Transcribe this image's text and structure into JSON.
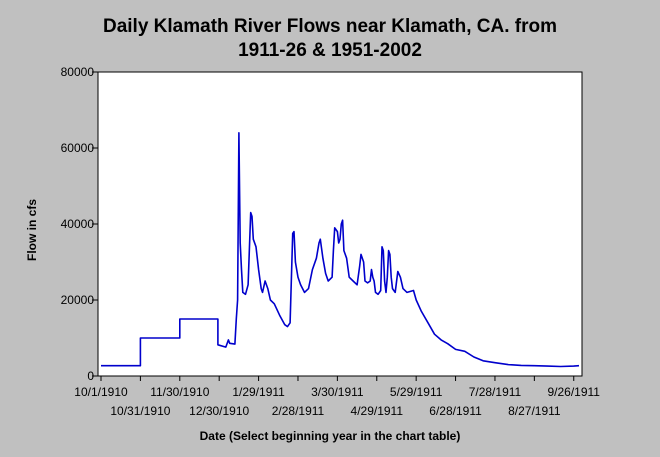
{
  "chart_data": {
    "type": "line",
    "title_line1": "Daily Klamath River Flows near Klamath, CA. from",
    "title_line2": "1911-26 & 1951-2002",
    "xlabel": "Date (Select beginning year in the chart table)",
    "ylabel": "Flow in cfs",
    "ylim": [
      0,
      80000
    ],
    "yticks": [
      "0",
      "20000",
      "40000",
      "60000",
      "80000"
    ],
    "xlim": [
      "1910-10-01",
      "1911-09-30"
    ],
    "xticks": [
      {
        "date": "1910-10-01",
        "label": "10/1/1910",
        "row": 1
      },
      {
        "date": "1910-10-31",
        "label": "10/31/1910",
        "row": 2
      },
      {
        "date": "1910-11-30",
        "label": "11/30/1910",
        "row": 1
      },
      {
        "date": "1910-12-30",
        "label": "12/30/1910",
        "row": 2
      },
      {
        "date": "1911-01-29",
        "label": "1/29/1911",
        "row": 1
      },
      {
        "date": "1911-02-28",
        "label": "2/28/1911",
        "row": 2
      },
      {
        "date": "1911-03-30",
        "label": "3/30/1911",
        "row": 1
      },
      {
        "date": "1911-04-29",
        "label": "4/29/1911",
        "row": 2
      },
      {
        "date": "1911-05-29",
        "label": "5/29/1911",
        "row": 1
      },
      {
        "date": "1911-06-28",
        "label": "6/28/1911",
        "row": 2
      },
      {
        "date": "1911-07-28",
        "label": "7/28/1911",
        "row": 1
      },
      {
        "date": "1911-08-27",
        "label": "8/27/1911",
        "row": 2
      },
      {
        "date": "1911-09-26",
        "label": "9/26/1911",
        "row": 1
      }
    ],
    "grid": false,
    "series": [
      {
        "color": "#0000cc",
        "points": [
          [
            "1910-10-01",
            2700
          ],
          [
            "1910-10-31",
            2700
          ],
          [
            "1910-10-31",
            10000
          ],
          [
            "1910-11-30",
            10000
          ],
          [
            "1910-11-30",
            15000
          ],
          [
            "1910-12-29",
            15000
          ],
          [
            "1910-12-29",
            8200
          ],
          [
            "1911-01-04",
            7600
          ],
          [
            "1911-01-06",
            9500
          ],
          [
            "1911-01-07",
            8600
          ],
          [
            "1911-01-11",
            8400
          ],
          [
            "1911-01-12",
            15000
          ],
          [
            "1911-01-13",
            20000
          ],
          [
            "1911-01-14",
            64000
          ],
          [
            "1911-01-15",
            35000
          ],
          [
            "1911-01-16",
            28000
          ],
          [
            "1911-01-17",
            22000
          ],
          [
            "1911-01-19",
            21500
          ],
          [
            "1911-01-21",
            24000
          ],
          [
            "1911-01-23",
            43000
          ],
          [
            "1911-01-24",
            42000
          ],
          [
            "1911-01-25",
            36000
          ],
          [
            "1911-01-27",
            34000
          ],
          [
            "1911-01-29",
            28000
          ],
          [
            "1911-01-31",
            23000
          ],
          [
            "1911-02-01",
            22000
          ],
          [
            "1911-02-03",
            25000
          ],
          [
            "1911-02-05",
            23000
          ],
          [
            "1911-02-07",
            20000
          ],
          [
            "1911-02-10",
            19000
          ],
          [
            "1911-02-14",
            16000
          ],
          [
            "1911-02-18",
            13500
          ],
          [
            "1911-02-20",
            13000
          ],
          [
            "1911-02-22",
            14000
          ],
          [
            "1911-02-24",
            37500
          ],
          [
            "1911-02-25",
            38000
          ],
          [
            "1911-02-26",
            30000
          ],
          [
            "1911-02-28",
            26000
          ],
          [
            "1911-03-02",
            24000
          ],
          [
            "1911-03-05",
            22000
          ],
          [
            "1911-03-08",
            23000
          ],
          [
            "1911-03-11",
            28000
          ],
          [
            "1911-03-14",
            31000
          ],
          [
            "1911-03-16",
            35000
          ],
          [
            "1911-03-17",
            36000
          ],
          [
            "1911-03-19",
            31000
          ],
          [
            "1911-03-21",
            27000
          ],
          [
            "1911-03-23",
            25000
          ],
          [
            "1911-03-26",
            26000
          ],
          [
            "1911-03-27",
            33000
          ],
          [
            "1911-03-28",
            39000
          ],
          [
            "1911-03-30",
            38000
          ],
          [
            "1911-03-31",
            35000
          ],
          [
            "1911-04-01",
            36000
          ],
          [
            "1911-04-02",
            40000
          ],
          [
            "1911-04-03",
            41000
          ],
          [
            "1911-04-04",
            33000
          ],
          [
            "1911-04-06",
            31000
          ],
          [
            "1911-04-08",
            26000
          ],
          [
            "1911-04-11",
            25000
          ],
          [
            "1911-04-14",
            24000
          ],
          [
            "1911-04-16",
            29000
          ],
          [
            "1911-04-17",
            32000
          ],
          [
            "1911-04-19",
            30000
          ],
          [
            "1911-04-20",
            25000
          ],
          [
            "1911-04-22",
            24500
          ],
          [
            "1911-04-24",
            25000
          ],
          [
            "1911-04-25",
            28000
          ],
          [
            "1911-04-26",
            26000
          ],
          [
            "1911-04-27",
            25000
          ],
          [
            "1911-04-28",
            22000
          ],
          [
            "1911-04-30",
            21500
          ],
          [
            "1911-05-02",
            22500
          ],
          [
            "1911-05-03",
            34000
          ],
          [
            "1911-05-04",
            33000
          ],
          [
            "1911-05-05",
            25000
          ],
          [
            "1911-05-06",
            22000
          ],
          [
            "1911-05-07",
            26000
          ],
          [
            "1911-05-08",
            33000
          ],
          [
            "1911-05-09",
            32000
          ],
          [
            "1911-05-10",
            26000
          ],
          [
            "1911-05-11",
            23000
          ],
          [
            "1911-05-13",
            22000
          ],
          [
            "1911-05-15",
            27500
          ],
          [
            "1911-05-17",
            26000
          ],
          [
            "1911-05-19",
            23000
          ],
          [
            "1911-05-22",
            22000
          ],
          [
            "1911-05-27",
            22500
          ],
          [
            "1911-05-29",
            20000
          ],
          [
            "1911-06-02",
            17000
          ],
          [
            "1911-06-07",
            14000
          ],
          [
            "1911-06-12",
            11000
          ],
          [
            "1911-06-17",
            9500
          ],
          [
            "1911-06-22",
            8500
          ],
          [
            "1911-06-28",
            7000
          ],
          [
            "1911-07-05",
            6500
          ],
          [
            "1911-07-12",
            5000
          ],
          [
            "1911-07-19",
            4000
          ],
          [
            "1911-07-28",
            3500
          ],
          [
            "1911-08-07",
            3000
          ],
          [
            "1911-08-17",
            2800
          ],
          [
            "1911-08-27",
            2700
          ],
          [
            "1911-09-06",
            2600
          ],
          [
            "1911-09-16",
            2500
          ],
          [
            "1911-09-26",
            2600
          ],
          [
            "1911-09-30",
            2700
          ]
        ]
      }
    ]
  }
}
